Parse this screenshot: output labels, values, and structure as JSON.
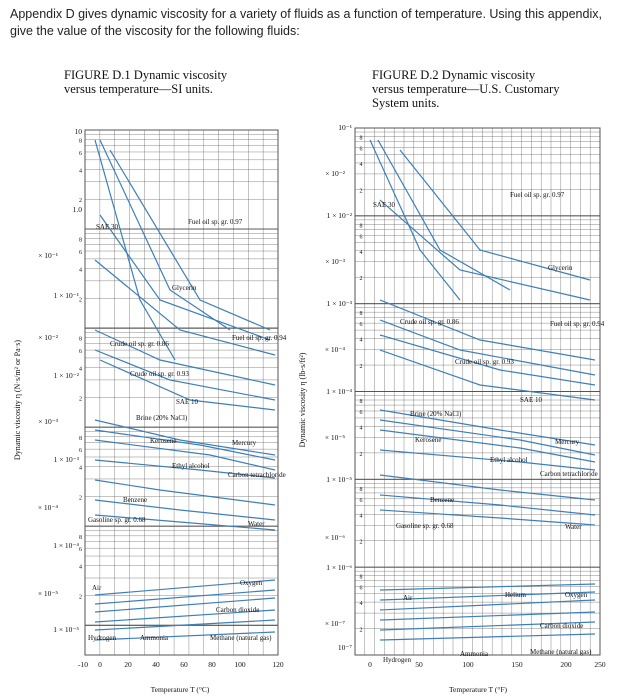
{
  "intro": "Appendix D gives dynamic viscosity for a variety of fluids as a function of temperature. Using this appendix, give the value of the viscosity for the following fluids:",
  "figure1": {
    "title_line1": "FIGURE D.1  Dynamic viscosity",
    "title_line2": "versus temperature—SI units.",
    "ylabel": "Dynamic viscosity η (N·s/m² or Pa·s)",
    "xlabel": "Temperature T (°C)",
    "xticks": [
      "-10",
      "0",
      "20",
      "40",
      "60",
      "80",
      "100",
      "120"
    ],
    "decade_labels": [
      "1 × 10⁻¹",
      "1 × 10⁻²",
      "1 × 10⁻³",
      "1 × 10⁻⁴",
      "1 × 10⁻⁵"
    ],
    "mid_labels": [
      "× 10⁻¹",
      "× 10⁻²",
      "× 10⁻³",
      "× 10⁻⁴",
      "× 10⁻⁵"
    ],
    "top_labels": [
      "10",
      "1.0"
    ],
    "fluids": {
      "sae30": "SAE 30",
      "fuel_oil": "Fuel oil sp. gr. 0.97",
      "glycerin": "Glycerin",
      "fuel_oil2": "Fuel oil sp. gr. 0.94",
      "crude1": "Crude oil sp. gr. 0.86",
      "crude2": "Crude oil sp. gr. 0.93",
      "sae10": "SAE 10",
      "brine": "Brine (20% NaCl)",
      "kerosene": "Kerosene",
      "mercury": "Mercury",
      "ethyl": "Ethyl alcohol",
      "carbon_tet": "Carbon tetrachloride",
      "benzene": "Benzene",
      "gasoline": "Gasoline sp. gr. 0.68",
      "water": "Water",
      "air": "Air",
      "oxygen": "Oxygen",
      "co2": "Carbon dioxide",
      "hydrogen": "Hydrogen",
      "ammonia": "Ammonia",
      "methane": "Methane (natural gas)"
    }
  },
  "figure2": {
    "title_line1": "FIGURE D.2  Dynamic viscosity",
    "title_line2": "versus temperature—U.S. Customary",
    "title_line3": "System units.",
    "ylabel": "Dynamic viscosity η (lb-s/ft²)",
    "xlabel": "Temperature T (°F)",
    "xticks": [
      "0",
      "50",
      "100",
      "150",
      "200",
      "250"
    ],
    "decade_labels": [
      "10⁻¹",
      "1 × 10⁻²",
      "1 × 10⁻³",
      "1 × 10⁻⁴",
      "1 × 10⁻⁵",
      "1 × 10⁻⁶",
      "10⁻⁷"
    ],
    "mid_labels": [
      "× 10⁻²",
      "× 10⁻³",
      "× 10⁻⁴",
      "× 10⁻⁵",
      "× 10⁻⁶",
      "× 10⁻⁷"
    ],
    "fluids": {
      "sae30": "SAE 30",
      "fuel_oil": "Fuel oil sp. gr. 0.97",
      "glycerin": "Glycerin",
      "crude1": "Crude oil sp. gr. 0.86",
      "fuel_oil2": "Fuel oil sp. gr. 0.94",
      "crude2": "Crude oil sp. gr. 0.93",
      "sae10": "SAE 10",
      "brine": "Brine (20% NaCl)",
      "kerosene": "Kerosene",
      "mercury": "Mercury",
      "ethyl": "Ethyl alcohol",
      "carbon_tet": "Carbon tetrachloride",
      "benzene": "Benzene",
      "gasoline": "Gasoline sp. gr. 0.68",
      "water": "Water",
      "air": "Air",
      "helium": "Helium",
      "oxygen": "Oxygen",
      "co2": "Carbon dioxide",
      "hydrogen": "Hydrogen",
      "ammonia": "Ammonia",
      "methane": "Methane (natural gas)"
    }
  },
  "colors": {
    "curve": "#3d7fb8",
    "grid": "#555555",
    "text": "#111111"
  }
}
